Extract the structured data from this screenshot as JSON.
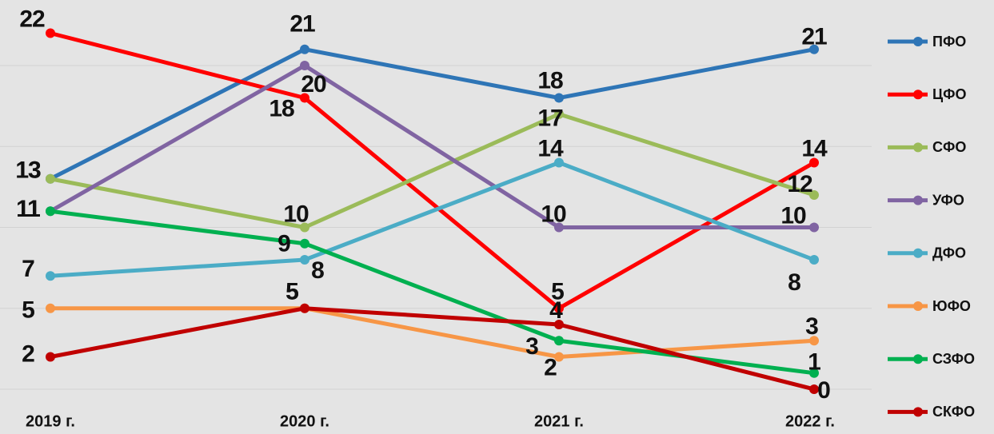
{
  "chart_data": {
    "type": "line",
    "categories": [
      "2019 г.",
      "2020 г.",
      "2021 г.",
      "2022 г."
    ],
    "series": [
      {
        "name": "ПФО",
        "color": "#2e75b6",
        "values": [
          13,
          21,
          18,
          21
        ]
      },
      {
        "name": "ЦФО",
        "color": "#ff0000",
        "values": [
          22,
          18,
          5,
          14
        ]
      },
      {
        "name": "СФО",
        "color": "#9bbb59",
        "values": [
          13,
          10,
          17,
          12
        ]
      },
      {
        "name": "УФО",
        "color": "#8064a2",
        "values": [
          11,
          20,
          10,
          10
        ]
      },
      {
        "name": "ДФО",
        "color": "#4bacc6",
        "values": [
          7,
          8,
          14,
          8
        ]
      },
      {
        "name": "ЮФО",
        "color": "#f79646",
        "values": [
          5,
          5,
          2,
          3
        ]
      },
      {
        "name": "СЗФО",
        "color": "#00b050",
        "values": [
          11,
          9,
          3,
          1
        ]
      },
      {
        "name": "СКФО",
        "color": "#c00000",
        "values": [
          2,
          5,
          4,
          0
        ]
      }
    ],
    "ylim": [
      0,
      24
    ],
    "yticks": [
      0,
      5,
      10,
      15,
      20
    ],
    "grid": true,
    "legend": "right"
  }
}
